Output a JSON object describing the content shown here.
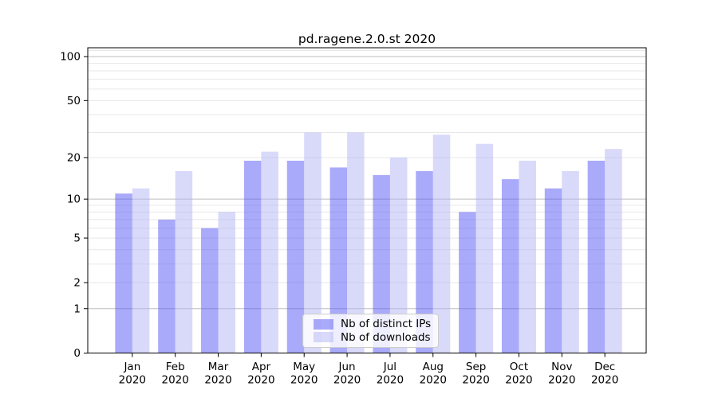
{
  "chart_data": {
    "type": "bar",
    "title": "pd.ragene.2.0.st 2020",
    "categories": [
      "Jan",
      "Feb",
      "Mar",
      "Apr",
      "May",
      "Jun",
      "Jul",
      "Aug",
      "Sep",
      "Oct",
      "Nov",
      "Dec"
    ],
    "category_year": "2020",
    "series": [
      {
        "name": "Nb of distinct IPs",
        "color": "rgba(85,85,245,0.5)",
        "values": [
          11,
          7,
          6,
          19,
          19,
          17,
          15,
          16,
          8,
          14,
          12,
          19
        ]
      },
      {
        "name": "Nb of downloads",
        "color": "rgba(180,180,245,0.5)",
        "values": [
          12,
          16,
          8,
          22,
          30,
          30,
          20,
          29,
          25,
          19,
          16,
          23
        ]
      }
    ],
    "yscale": "log10(1+x)",
    "ylim": [
      0,
      115
    ],
    "yticks": [
      100,
      50,
      20,
      10,
      5,
      2,
      1,
      0
    ],
    "major_gridlines": [
      1,
      10,
      100
    ],
    "minor_gridlines": [
      2,
      3,
      4,
      5,
      6,
      7,
      8,
      9,
      20,
      30,
      40,
      50,
      60,
      70,
      80,
      90,
      110
    ],
    "grid": true,
    "legend_position": "lower center",
    "xlabel": "",
    "ylabel": ""
  },
  "colors": {
    "major_grid": "#bdbdbd",
    "minor_grid": "#e7e7e7",
    "spine": "#000000",
    "background": "#ffffff",
    "legend_border": "#cccccc"
  }
}
